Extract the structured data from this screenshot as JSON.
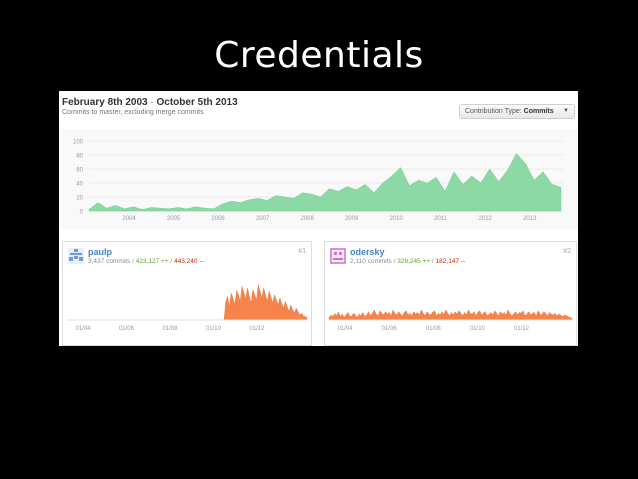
{
  "slide": {
    "title": "Credentials"
  },
  "header": {
    "start_date": "February 8th 2003",
    "separator": "-",
    "end_date": "October 5th 2013",
    "subtitle": "Commits to master, excluding merge commits"
  },
  "contribution_type": {
    "label": "Contribution Type:",
    "value": "Commits",
    "caret": "▼"
  },
  "main_chart": {
    "y_ticks": [
      "100",
      "80",
      "60",
      "40",
      "20",
      "0"
    ],
    "x_ticks": [
      "2004",
      "2005",
      "2006",
      "2007",
      "2008",
      "2009",
      "2010",
      "2011",
      "2012",
      "2013"
    ],
    "color": "#8cd9a6"
  },
  "contributors": [
    {
      "name": "paulp",
      "commits": "3,437 commits",
      "slash1": " / ",
      "additions": "423,127 ++",
      "slash2": " / ",
      "deletions": "443,240 --",
      "rank": "#1",
      "x_ticks": [
        "01/04",
        "01/06",
        "01/08",
        "01/10",
        "01/12"
      ],
      "color": "#f5844c"
    },
    {
      "name": "odersky",
      "commits": "2,110 commits",
      "slash1": " / ",
      "additions": "328,245 ++",
      "slash2": " / ",
      "deletions": "182,147 --",
      "rank": "#2",
      "x_ticks": [
        "01/04",
        "01/06",
        "01/08",
        "01/10",
        "01/12"
      ],
      "color": "#f5844c"
    }
  ],
  "chart_data": [
    {
      "type": "area",
      "title": "",
      "x_range": [
        2003.1,
        2013.77
      ],
      "ylim": [
        0,
        100
      ],
      "x": [
        2003.1,
        2003.3,
        2003.5,
        2003.7,
        2003.9,
        2004.1,
        2004.3,
        2004.5,
        2004.7,
        2004.9,
        2005.1,
        2005.3,
        2005.5,
        2005.7,
        2005.9,
        2006.1,
        2006.3,
        2006.5,
        2006.7,
        2006.9,
        2007.1,
        2007.3,
        2007.5,
        2007.7,
        2007.9,
        2008.1,
        2008.3,
        2008.5,
        2008.7,
        2008.9,
        2009.1,
        2009.3,
        2009.5,
        2009.7,
        2009.9,
        2010.1,
        2010.3,
        2010.5,
        2010.7,
        2010.9,
        2011.1,
        2011.3,
        2011.5,
        2011.7,
        2011.9,
        2012.1,
        2012.3,
        2012.5,
        2012.7,
        2012.9,
        2013.1,
        2013.3,
        2013.5,
        2013.7
      ],
      "values": [
        2,
        12,
        4,
        8,
        3,
        6,
        2,
        5,
        4,
        3,
        5,
        3,
        6,
        4,
        3,
        10,
        14,
        12,
        16,
        18,
        15,
        22,
        20,
        18,
        26,
        24,
        20,
        32,
        28,
        35,
        30,
        38,
        26,
        40,
        50,
        62,
        36,
        44,
        40,
        48,
        28,
        56,
        38,
        50,
        40,
        60,
        42,
        58,
        82,
        68,
        44,
        56,
        38,
        34
      ]
    },
    {
      "type": "area",
      "title": "",
      "series": [
        {
          "name": "paulp"
        }
      ],
      "values": [
        0,
        0,
        0,
        0,
        0,
        0,
        0,
        0,
        0,
        0,
        0,
        0,
        0,
        0,
        0,
        0,
        0,
        0,
        0,
        0,
        0,
        0,
        0,
        0,
        0,
        0,
        0,
        0,
        0,
        0,
        0,
        0,
        0,
        0,
        0,
        0,
        0,
        0,
        0,
        0,
        0,
        0,
        0,
        0,
        0,
        0,
        0,
        0,
        0,
        0,
        0,
        0,
        0,
        0,
        0,
        0,
        0,
        0,
        0,
        0,
        0,
        0,
        0,
        0,
        0,
        0,
        0,
        0,
        0,
        0,
        0,
        0,
        0,
        0,
        0,
        0,
        0,
        0,
        0,
        0,
        0,
        0,
        0,
        0,
        0,
        0,
        0,
        0,
        22,
        28,
        15,
        32,
        26,
        18,
        35,
        30,
        22,
        40,
        33,
        25,
        38,
        28,
        20,
        36,
        30,
        24,
        42,
        34,
        26,
        38,
        30,
        22,
        34,
        28,
        20,
        30,
        24,
        18,
        26,
        20,
        14,
        22,
        16,
        10,
        18,
        12,
        8,
        14,
        10,
        6,
        8,
        5,
        4,
        3
      ]
    },
    {
      "type": "area",
      "title": "",
      "series": [
        {
          "name": "odersky"
        }
      ],
      "values": [
        3,
        6,
        4,
        8,
        5,
        10,
        4,
        7,
        3,
        6,
        9,
        5,
        4,
        8,
        6,
        3,
        7,
        5,
        9,
        4,
        6,
        10,
        5,
        8,
        12,
        7,
        5,
        11,
        8,
        6,
        10,
        7,
        9,
        5,
        12,
        8,
        6,
        10,
        7,
        5,
        9,
        11,
        6,
        8,
        5,
        10,
        7,
        9,
        6,
        12,
        8,
        5,
        10,
        7,
        6,
        9,
        11,
        5,
        8,
        6,
        10,
        7,
        12,
        8,
        5,
        9,
        6,
        10,
        7,
        11,
        8,
        5,
        9,
        6,
        12,
        8,
        7,
        10,
        5,
        9,
        11,
        6,
        8,
        10,
        5,
        7,
        9,
        6,
        11,
        8,
        5,
        10,
        7,
        9,
        6,
        12,
        8,
        5,
        7,
        10,
        6,
        9,
        8,
        11,
        5,
        7,
        10,
        6,
        8,
        9,
        5,
        11,
        7,
        6,
        10,
        8,
        5,
        9,
        7,
        6,
        8,
        5,
        7,
        6,
        4,
        6,
        5,
        4,
        3,
        2
      ]
    }
  ]
}
